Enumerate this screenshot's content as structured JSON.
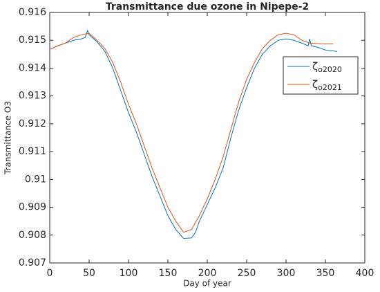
{
  "chart_data": {
    "type": "line",
    "title": "Transmittance due ozone in Nipepe-2",
    "xlabel": "Day of year",
    "ylabel": "Transmittance O3",
    "xlim": [
      0,
      400
    ],
    "xticks": [
      0,
      50,
      100,
      150,
      200,
      250,
      300,
      350,
      400
    ],
    "ylim": [
      0.907,
      0.916
    ],
    "yticks": [
      0.907,
      0.908,
      0.909,
      0.91,
      0.911,
      0.912,
      0.913,
      0.914,
      0.915,
      0.916
    ],
    "legend": "northeast",
    "series": [
      {
        "name": "ζo2020",
        "color": "#0072bd",
        "x": [
          1,
          10,
          20,
          30,
          40,
          45,
          48,
          50,
          60,
          70,
          80,
          90,
          100,
          110,
          120,
          130,
          140,
          150,
          160,
          170,
          180,
          185,
          190,
          200,
          210,
          220,
          230,
          240,
          250,
          260,
          270,
          280,
          285,
          290,
          300,
          310,
          320,
          328,
          330,
          332,
          340,
          350,
          365
        ],
        "values": [
          0.91468,
          0.9148,
          0.9149,
          0.915,
          0.91505,
          0.9151,
          0.91535,
          0.9152,
          0.91495,
          0.9146,
          0.914,
          0.9132,
          0.9124,
          0.9117,
          0.9109,
          0.9101,
          0.9094,
          0.9087,
          0.9082,
          0.90788,
          0.9079,
          0.9081,
          0.9085,
          0.9091,
          0.9097,
          0.9104,
          0.9115,
          0.9125,
          0.9133,
          0.914,
          0.9145,
          0.9148,
          0.9149,
          0.915,
          0.91505,
          0.915,
          0.9149,
          0.9148,
          0.91505,
          0.9148,
          0.91475,
          0.91465,
          0.9146
        ]
      },
      {
        "name": "ζo2021",
        "color": "#d95319",
        "x": [
          1,
          10,
          20,
          30,
          40,
          50,
          60,
          70,
          80,
          90,
          100,
          110,
          120,
          130,
          140,
          150,
          160,
          170,
          180,
          190,
          200,
          210,
          220,
          230,
          240,
          250,
          260,
          270,
          280,
          290,
          300,
          310,
          320,
          330,
          340,
          350,
          360
        ],
        "values": [
          0.91468,
          0.9148,
          0.9149,
          0.9151,
          0.9152,
          0.91525,
          0.915,
          0.9147,
          0.9142,
          0.9135,
          0.9127,
          0.912,
          0.9112,
          0.9104,
          0.9097,
          0.909,
          0.9085,
          0.9081,
          0.9082,
          0.9087,
          0.9093,
          0.91,
          0.9108,
          0.9118,
          0.9128,
          0.9136,
          0.9142,
          0.9147,
          0.915,
          0.9152,
          0.91525,
          0.9152,
          0.915,
          0.9149,
          0.91488,
          0.91487,
          0.91487
        ]
      }
    ]
  }
}
